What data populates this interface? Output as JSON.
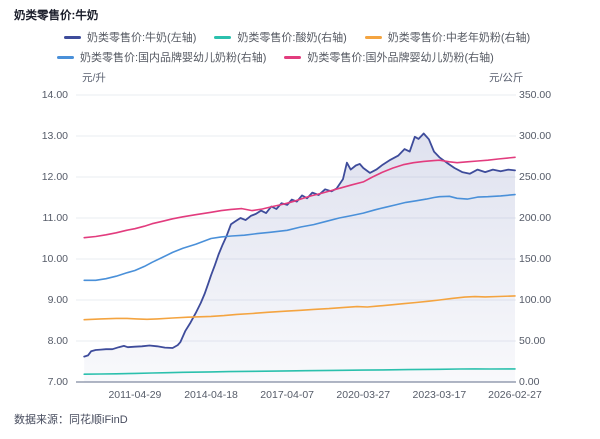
{
  "header": {
    "title": "奶类零售价:牛奶"
  },
  "footer": {
    "source": "数据来源：同花顺iFinD"
  },
  "colors": {
    "milk_navy": "#3E4C9B",
    "yogurt_teal": "#2BC0AD",
    "elderly_powder_orange": "#F4A440",
    "domestic_formula_blue": "#4A90D9",
    "foreign_formula_pink": "#E23C7E",
    "grid": "#EAECF2",
    "axis_line": "#B0B6C4",
    "area_fill_base": "#5E6BAE",
    "tick_text": "#555B68"
  },
  "chart_data": {
    "type": "line",
    "title": "奶类零售价:牛奶",
    "grid": true,
    "legend_position": "top",
    "left_axis": {
      "unit": "元/升",
      "min": 7,
      "max": 14,
      "ticks": [
        "14.00",
        "13.00",
        "12.00",
        "11.00",
        "10.00",
        "9.00",
        "8.00",
        "7.00"
      ]
    },
    "right_axis": {
      "unit": "元/公斤",
      "min": 0,
      "max": 350,
      "ticks": [
        "350.00",
        "300.00",
        "250.00",
        "200.00",
        "150.00",
        "100.00",
        "50.00",
        "0.00"
      ]
    },
    "x_axis": {
      "start_year": 2009.03,
      "end_year": 2026.2,
      "ticks": [
        {
          "label": "2011-04-29",
          "year": 2011.33
        },
        {
          "label": "2014-04-18",
          "year": 2014.3
        },
        {
          "label": "2017-04-07",
          "year": 2017.27
        },
        {
          "label": "2020-03-27",
          "year": 2020.24
        },
        {
          "label": "2023-03-17",
          "year": 2023.21
        },
        {
          "label": "2026-02-27",
          "year": 2026.16
        }
      ]
    },
    "series": [
      {
        "name": "奶类零售价:牛奶(左轴)",
        "id": "milk",
        "axis": "left",
        "color": "#3E4C9B",
        "width": 1.8,
        "area": true,
        "legend_row": 1,
        "points": [
          [
            2009.35,
            7.62
          ],
          [
            2009.5,
            7.65
          ],
          [
            2009.62,
            7.75
          ],
          [
            2009.8,
            7.78
          ],
          [
            2010.0,
            7.79
          ],
          [
            2010.2,
            7.8
          ],
          [
            2010.45,
            7.8
          ],
          [
            2010.7,
            7.85
          ],
          [
            2010.9,
            7.88
          ],
          [
            2011.05,
            7.85
          ],
          [
            2011.33,
            7.86
          ],
          [
            2011.6,
            7.87
          ],
          [
            2011.9,
            7.89
          ],
          [
            2012.2,
            7.87
          ],
          [
            2012.5,
            7.84
          ],
          [
            2012.8,
            7.83
          ],
          [
            2013.0,
            7.9
          ],
          [
            2013.1,
            7.97
          ],
          [
            2013.3,
            8.25
          ],
          [
            2013.5,
            8.45
          ],
          [
            2013.7,
            8.68
          ],
          [
            2013.9,
            8.93
          ],
          [
            2014.05,
            9.15
          ],
          [
            2014.2,
            9.42
          ],
          [
            2014.3,
            9.6
          ],
          [
            2014.45,
            9.85
          ],
          [
            2014.6,
            10.12
          ],
          [
            2014.75,
            10.35
          ],
          [
            2014.9,
            10.55
          ],
          [
            2015.08,
            10.85
          ],
          [
            2015.25,
            10.92
          ],
          [
            2015.45,
            11.0
          ],
          [
            2015.65,
            10.95
          ],
          [
            2015.85,
            11.05
          ],
          [
            2016.05,
            11.1
          ],
          [
            2016.25,
            11.18
          ],
          [
            2016.45,
            11.12
          ],
          [
            2016.65,
            11.28
          ],
          [
            2016.85,
            11.22
          ],
          [
            2017.05,
            11.36
          ],
          [
            2017.27,
            11.32
          ],
          [
            2017.45,
            11.45
          ],
          [
            2017.65,
            11.4
          ],
          [
            2017.85,
            11.55
          ],
          [
            2018.05,
            11.48
          ],
          [
            2018.25,
            11.62
          ],
          [
            2018.5,
            11.56
          ],
          [
            2018.75,
            11.7
          ],
          [
            2019.0,
            11.65
          ],
          [
            2019.2,
            11.72
          ],
          [
            2019.45,
            11.95
          ],
          [
            2019.6,
            12.35
          ],
          [
            2019.75,
            12.18
          ],
          [
            2019.95,
            12.28
          ],
          [
            2020.1,
            12.32
          ],
          [
            2020.24,
            12.22
          ],
          [
            2020.5,
            12.1
          ],
          [
            2020.75,
            12.18
          ],
          [
            2021.0,
            12.3
          ],
          [
            2021.3,
            12.42
          ],
          [
            2021.6,
            12.52
          ],
          [
            2021.85,
            12.68
          ],
          [
            2022.05,
            12.62
          ],
          [
            2022.25,
            12.98
          ],
          [
            2022.4,
            12.93
          ],
          [
            2022.6,
            13.06
          ],
          [
            2022.8,
            12.92
          ],
          [
            2023.0,
            12.62
          ],
          [
            2023.21,
            12.48
          ],
          [
            2023.5,
            12.35
          ],
          [
            2023.8,
            12.22
          ],
          [
            2024.1,
            12.12
          ],
          [
            2024.4,
            12.08
          ],
          [
            2024.7,
            12.18
          ],
          [
            2025.0,
            12.12
          ],
          [
            2025.3,
            12.18
          ],
          [
            2025.6,
            12.14
          ],
          [
            2025.9,
            12.18
          ],
          [
            2026.16,
            12.16
          ]
        ]
      },
      {
        "name": "奶类零售价:酸奶(右轴)",
        "id": "yogurt",
        "axis": "right",
        "color": "#2BC0AD",
        "width": 1.6,
        "area": false,
        "legend_row": 1,
        "points": [
          [
            2009.35,
            9.5
          ],
          [
            2010.0,
            9.8
          ],
          [
            2010.6,
            10.0
          ],
          [
            2011.33,
            10.5
          ],
          [
            2012.0,
            11.0
          ],
          [
            2012.6,
            11.4
          ],
          [
            2013.2,
            11.8
          ],
          [
            2014.3,
            12.3
          ],
          [
            2015.0,
            12.7
          ],
          [
            2016.0,
            13.1
          ],
          [
            2017.27,
            13.5
          ],
          [
            2018.0,
            13.8
          ],
          [
            2019.0,
            14.1
          ],
          [
            2020.24,
            14.5
          ],
          [
            2021.0,
            14.8
          ],
          [
            2022.0,
            15.1
          ],
          [
            2023.21,
            15.5
          ],
          [
            2024.0,
            15.8
          ],
          [
            2024.6,
            16.0
          ],
          [
            2025.2,
            15.8
          ],
          [
            2026.16,
            16.0
          ]
        ]
      },
      {
        "name": "奶类零售价:中老年奶粉(右轴)",
        "id": "elderly-powder",
        "axis": "right",
        "color": "#F4A440",
        "width": 1.6,
        "area": false,
        "legend_row": 1,
        "points": [
          [
            2009.35,
            76
          ],
          [
            2010.0,
            77
          ],
          [
            2010.6,
            77.5
          ],
          [
            2011.0,
            77.5
          ],
          [
            2011.4,
            77
          ],
          [
            2011.8,
            76.5
          ],
          [
            2012.2,
            77
          ],
          [
            2012.8,
            78
          ],
          [
            2013.4,
            79
          ],
          [
            2014.3,
            80
          ],
          [
            2014.8,
            81
          ],
          [
            2015.3,
            82.5
          ],
          [
            2015.9,
            83.5
          ],
          [
            2016.5,
            85
          ],
          [
            2017.27,
            86.5
          ],
          [
            2017.8,
            87.5
          ],
          [
            2018.3,
            88.5
          ],
          [
            2018.9,
            89.5
          ],
          [
            2019.5,
            91
          ],
          [
            2020.0,
            92
          ],
          [
            2020.4,
            91.5
          ],
          [
            2020.8,
            92.5
          ],
          [
            2021.3,
            94
          ],
          [
            2021.8,
            95.5
          ],
          [
            2022.3,
            97
          ],
          [
            2022.8,
            98.5
          ],
          [
            2023.21,
            100
          ],
          [
            2023.7,
            102
          ],
          [
            2024.2,
            103.5
          ],
          [
            2024.6,
            104.2
          ],
          [
            2025.0,
            103.8
          ],
          [
            2025.5,
            104.3
          ],
          [
            2026.16,
            105
          ]
        ]
      },
      {
        "name": "奶类零售价:国内品牌婴幼儿奶粉(右轴)",
        "id": "domestic-formula",
        "axis": "right",
        "color": "#4A90D9",
        "width": 1.6,
        "area": false,
        "legend_row": 2,
        "points": [
          [
            2009.35,
            124
          ],
          [
            2009.8,
            124
          ],
          [
            2010.2,
            126
          ],
          [
            2010.6,
            129
          ],
          [
            2011.0,
            133
          ],
          [
            2011.33,
            136
          ],
          [
            2011.7,
            141
          ],
          [
            2012.0,
            146
          ],
          [
            2012.4,
            152
          ],
          [
            2012.8,
            158
          ],
          [
            2013.2,
            163
          ],
          [
            2013.7,
            168
          ],
          [
            2014.3,
            175
          ],
          [
            2014.7,
            177
          ],
          [
            2015.1,
            178
          ],
          [
            2015.6,
            179
          ],
          [
            2016.1,
            181
          ],
          [
            2016.6,
            182.5
          ],
          [
            2017.27,
            185
          ],
          [
            2017.8,
            189
          ],
          [
            2018.3,
            192
          ],
          [
            2018.8,
            196
          ],
          [
            2019.3,
            200
          ],
          [
            2019.8,
            203
          ],
          [
            2020.24,
            206
          ],
          [
            2020.7,
            210
          ],
          [
            2021.1,
            213
          ],
          [
            2021.5,
            216
          ],
          [
            2021.9,
            219
          ],
          [
            2022.3,
            221
          ],
          [
            2022.7,
            223
          ],
          [
            2023.0,
            225
          ],
          [
            2023.21,
            226
          ],
          [
            2023.6,
            226.5
          ],
          [
            2023.9,
            224
          ],
          [
            2024.3,
            223
          ],
          [
            2024.7,
            225.5
          ],
          [
            2025.1,
            226
          ],
          [
            2025.6,
            227
          ],
          [
            2026.16,
            228.5
          ]
        ]
      },
      {
        "name": "奶类零售价:国外品牌婴幼儿奶粉(右轴)",
        "id": "foreign-formula",
        "axis": "right",
        "color": "#E23C7E",
        "width": 1.6,
        "area": false,
        "legend_row": 2,
        "points": [
          [
            2009.35,
            176
          ],
          [
            2009.8,
            177.5
          ],
          [
            2010.2,
            179.5
          ],
          [
            2010.6,
            182
          ],
          [
            2011.0,
            185
          ],
          [
            2011.33,
            187
          ],
          [
            2011.7,
            190
          ],
          [
            2012.0,
            193
          ],
          [
            2012.4,
            196
          ],
          [
            2012.8,
            199
          ],
          [
            2013.2,
            201.5
          ],
          [
            2013.7,
            204
          ],
          [
            2014.3,
            207
          ],
          [
            2014.7,
            209
          ],
          [
            2015.08,
            210.5
          ],
          [
            2015.5,
            211.5
          ],
          [
            2015.9,
            209
          ],
          [
            2016.3,
            211
          ],
          [
            2016.7,
            214
          ],
          [
            2017.0,
            216
          ],
          [
            2017.27,
            218
          ],
          [
            2017.6,
            221
          ],
          [
            2017.9,
            224
          ],
          [
            2018.2,
            227
          ],
          [
            2018.6,
            230
          ],
          [
            2019.0,
            233.5
          ],
          [
            2019.4,
            237
          ],
          [
            2019.8,
            240.5
          ],
          [
            2020.24,
            244
          ],
          [
            2020.6,
            250
          ],
          [
            2021.0,
            256
          ],
          [
            2021.4,
            261
          ],
          [
            2021.8,
            265
          ],
          [
            2022.2,
            267.5
          ],
          [
            2022.6,
            269
          ],
          [
            2023.0,
            270
          ],
          [
            2023.21,
            270.5
          ],
          [
            2023.6,
            268.5
          ],
          [
            2023.9,
            267.5
          ],
          [
            2024.3,
            268.5
          ],
          [
            2024.7,
            269.5
          ],
          [
            2025.1,
            270.5
          ],
          [
            2025.5,
            272
          ],
          [
            2026.16,
            274
          ]
        ]
      }
    ]
  }
}
